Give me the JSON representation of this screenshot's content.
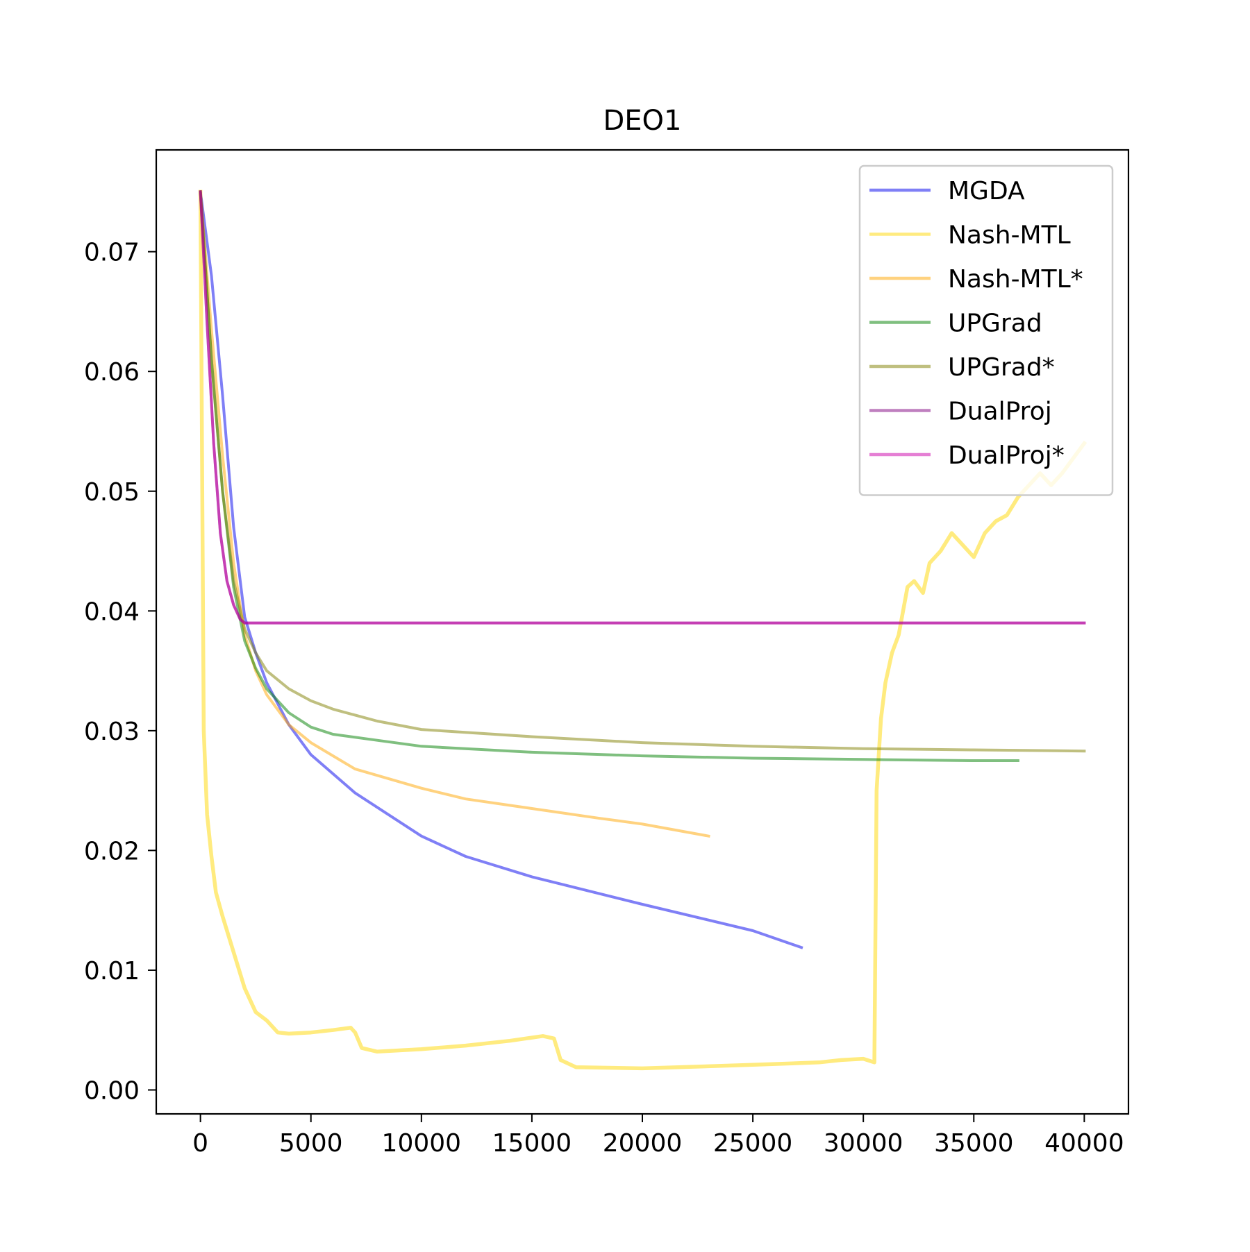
{
  "chart_data": {
    "type": "line",
    "title": "DEO1",
    "xlabel": "",
    "ylabel": "",
    "xlim": [
      -2000,
      42000
    ],
    "ylim": [
      -0.002,
      0.0785
    ],
    "x_ticks": [
      0,
      5000,
      10000,
      15000,
      20000,
      25000,
      30000,
      35000,
      40000
    ],
    "x_tick_labels": [
      "0",
      "5000",
      "10000",
      "15000",
      "20000",
      "25000",
      "30000",
      "35000",
      "40000"
    ],
    "y_ticks": [
      0.0,
      0.01,
      0.02,
      0.03,
      0.04,
      0.05,
      0.06,
      0.07
    ],
    "y_tick_labels": [
      "0.00",
      "0.01",
      "0.02",
      "0.03",
      "0.04",
      "0.05",
      "0.06",
      "0.07"
    ],
    "grid": false,
    "legend_position": "top-right",
    "series": [
      {
        "name": "MGDA",
        "color": "#0000ee",
        "opacity": 0.5,
        "x": [
          0,
          500,
          1000,
          1500,
          2000,
          2500,
          3000,
          4000,
          5000,
          7000,
          10000,
          12000,
          15000,
          20000,
          25000,
          27200
        ],
        "y": [
          0.075,
          0.068,
          0.058,
          0.047,
          0.0395,
          0.0365,
          0.034,
          0.0305,
          0.028,
          0.0248,
          0.0212,
          0.0195,
          0.0178,
          0.0155,
          0.0133,
          0.0119
        ]
      },
      {
        "name": "Nash-MTL",
        "color": "#ffd700",
        "opacity": 0.5,
        "x": [
          0,
          150,
          300,
          500,
          700,
          1000,
          1500,
          2000,
          2500,
          3000,
          3500,
          4000,
          5000,
          6000,
          6800,
          7000,
          7300,
          8000,
          10000,
          12000,
          14000,
          15500,
          16000,
          16300,
          17000,
          20000,
          25000,
          28000,
          29000,
          30000,
          30500,
          30600,
          30800,
          31000,
          31300,
          31600,
          32000,
          32300,
          32700,
          33000,
          33500,
          34000,
          34500,
          35000,
          35500,
          36000,
          36500,
          37000,
          37500,
          38000,
          38500,
          39000,
          40000
        ],
        "y": [
          0.075,
          0.03,
          0.023,
          0.0195,
          0.0165,
          0.0145,
          0.0115,
          0.0085,
          0.0065,
          0.0058,
          0.0048,
          0.0047,
          0.0048,
          0.005,
          0.0052,
          0.0048,
          0.0035,
          0.0032,
          0.0034,
          0.0037,
          0.0041,
          0.0045,
          0.0043,
          0.0025,
          0.0019,
          0.0018,
          0.0021,
          0.0023,
          0.0025,
          0.0026,
          0.0023,
          0.025,
          0.031,
          0.034,
          0.0365,
          0.038,
          0.042,
          0.0425,
          0.0415,
          0.044,
          0.045,
          0.0465,
          0.0455,
          0.0445,
          0.0465,
          0.0475,
          0.048,
          0.0495,
          0.0505,
          0.0515,
          0.0505,
          0.0515,
          0.054
        ]
      },
      {
        "name": "Nash-MTL*",
        "color": "#ffa500",
        "opacity": 0.5,
        "x": [
          0,
          500,
          1000,
          1500,
          2000,
          2500,
          3000,
          4000,
          5000,
          7000,
          10000,
          12000,
          15000,
          18000,
          20000,
          23000
        ],
        "y": [
          0.075,
          0.0635,
          0.053,
          0.044,
          0.038,
          0.035,
          0.033,
          0.0305,
          0.029,
          0.0268,
          0.0252,
          0.0243,
          0.0235,
          0.0227,
          0.0222,
          0.0212
        ]
      },
      {
        "name": "UPGrad",
        "color": "#008000",
        "opacity": 0.5,
        "x": [
          0,
          500,
          1000,
          1500,
          2000,
          2500,
          3000,
          4000,
          5000,
          6000,
          8000,
          10000,
          15000,
          20000,
          25000,
          30000,
          35000,
          37000
        ],
        "y": [
          0.075,
          0.061,
          0.05,
          0.042,
          0.0375,
          0.0352,
          0.0335,
          0.0315,
          0.0303,
          0.0297,
          0.0292,
          0.0287,
          0.0282,
          0.0279,
          0.0277,
          0.0276,
          0.0275,
          0.0275
        ]
      },
      {
        "name": "UPGrad*",
        "color": "#808000",
        "opacity": 0.5,
        "x": [
          0,
          500,
          1000,
          1500,
          2000,
          2500,
          3000,
          4000,
          5000,
          6000,
          8000,
          10000,
          15000,
          20000,
          25000,
          30000,
          35000,
          40000
        ],
        "y": [
          0.075,
          0.061,
          0.05,
          0.0425,
          0.0385,
          0.0365,
          0.035,
          0.0335,
          0.0325,
          0.0318,
          0.0308,
          0.0301,
          0.0295,
          0.029,
          0.0287,
          0.0285,
          0.0284,
          0.0283
        ]
      },
      {
        "name": "DualProj",
        "color": "#800080",
        "opacity": 0.5,
        "x": [
          0,
          300,
          600,
          900,
          1200,
          1500,
          1800,
          2000,
          2500,
          40000
        ],
        "y": [
          0.075,
          0.064,
          0.054,
          0.0465,
          0.0425,
          0.0405,
          0.0393,
          0.039,
          0.039,
          0.039
        ]
      },
      {
        "name": "DualProj*",
        "color": "#cc00aa",
        "opacity": 0.5,
        "x": [
          0,
          300,
          600,
          900,
          1200,
          1500,
          1800,
          2000,
          2500,
          40000
        ],
        "y": [
          0.075,
          0.064,
          0.054,
          0.0465,
          0.0425,
          0.0405,
          0.0393,
          0.039,
          0.039,
          0.039
        ]
      }
    ]
  }
}
